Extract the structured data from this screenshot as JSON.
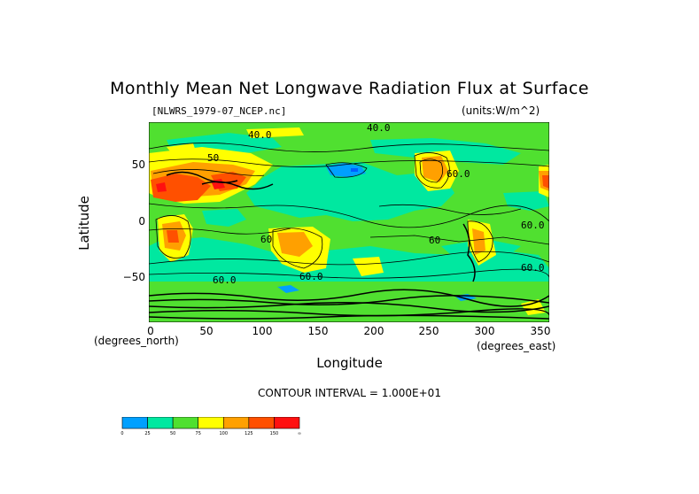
{
  "title": "Monthly Mean Net Longwave Radiation Flux at Surface",
  "dataset": "[NLWRS_1979-07_NCEP.nc]",
  "units": "(units:W/m^2)",
  "axes": {
    "ylabel": "Latitude",
    "xlabel": "Longitude",
    "y_unit": "(degrees_north)",
    "x_unit": "(degrees_east)",
    "yticks": [
      "50",
      "0",
      "−50"
    ],
    "xticks": [
      "0",
      "50",
      "100",
      "150",
      "200",
      "250",
      "300",
      "350"
    ],
    "lon_range": [
      0,
      360
    ],
    "lat_range": [
      -90,
      90
    ]
  },
  "contour_interval": "CONTOUR INTERVAL = 1.000E+01",
  "contour_labels": [
    "40.0",
    "50",
    "60.0",
    "60",
    "60.0",
    "60.0",
    "60",
    "60.0",
    "40.0",
    "60.0"
  ],
  "colorbar": {
    "ticks": [
      "0",
      "25",
      "50",
      "75",
      "100",
      "125",
      "150",
      "∞"
    ],
    "colors": [
      "#00a0ff",
      "#00e8a0",
      "#50e030",
      "#ffff00",
      "#ffa000",
      "#ff5000",
      "#ff1010"
    ]
  }
}
